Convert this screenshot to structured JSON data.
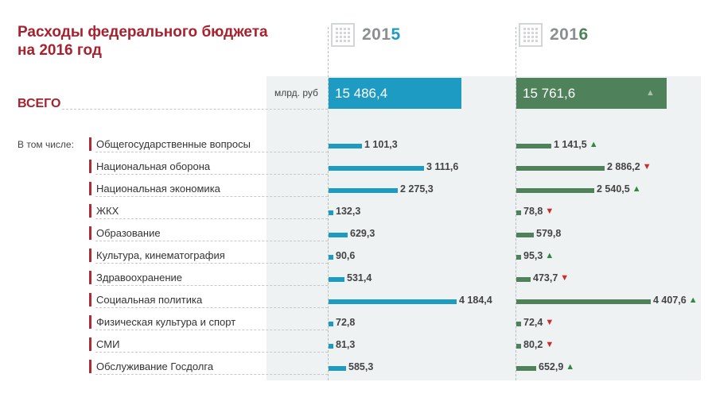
{
  "title": [
    "Расходы федерального бюджета",
    "на 2016 год"
  ],
  "years": [
    "2015",
    "2016"
  ],
  "unit": "млрд. руб",
  "total": {
    "label": "ВСЕГО",
    "y2015": "15 486,4",
    "y2016": "15 761,6",
    "trend": "up"
  },
  "subtitle": "В том числе:",
  "colors": {
    "accent": "#a6222f",
    "bar2015": "#1e9bc3",
    "bar2016": "#4f825a",
    "up": "#2e8a3e",
    "down": "#d12a2a"
  },
  "chart_data": {
    "type": "bar",
    "title": "Расходы федерального бюджета на 2016 год",
    "unit": "млрд. руб",
    "categories": [
      "Общегосударственные вопросы",
      "Национальная оборона",
      "Национальная экономика",
      "ЖКХ",
      "Образование",
      "Культура, кинематография",
      "Здравоохранение",
      "Социальная политика",
      "Физическая культура и спорт",
      "СМИ",
      "Обслуживание Госдолга"
    ],
    "series": [
      {
        "name": "2015",
        "values": [
          1101.3,
          3111.6,
          2275.3,
          132.3,
          629.3,
          90.6,
          531.4,
          4184.4,
          72.8,
          81.3,
          585.3
        ],
        "labels": [
          "1 101,3",
          "3 111,6",
          "2 275,3",
          "132,3",
          "629,3",
          "90,6",
          "531,4",
          "4 184,4",
          "72,8",
          "81,3",
          "585,3"
        ]
      },
      {
        "name": "2016",
        "values": [
          1141.5,
          2886.2,
          2540.5,
          78.8,
          579.8,
          95.3,
          473.7,
          4407.6,
          72.4,
          80.2,
          652.9
        ],
        "labels": [
          "1 141,5",
          "2 886,2",
          "2 540,5",
          "78,8",
          "579,8",
          "95,3",
          "473,7",
          "4 407,6",
          "72,4",
          "80,2",
          "652,9"
        ],
        "trend": [
          "up",
          "down",
          "up",
          "down",
          "none",
          "up",
          "down",
          "up",
          "down",
          "down",
          "up"
        ]
      }
    ],
    "total": {
      "2015": 15486.4,
      "2016": 15761.6
    },
    "grid": false,
    "legend": "top"
  }
}
